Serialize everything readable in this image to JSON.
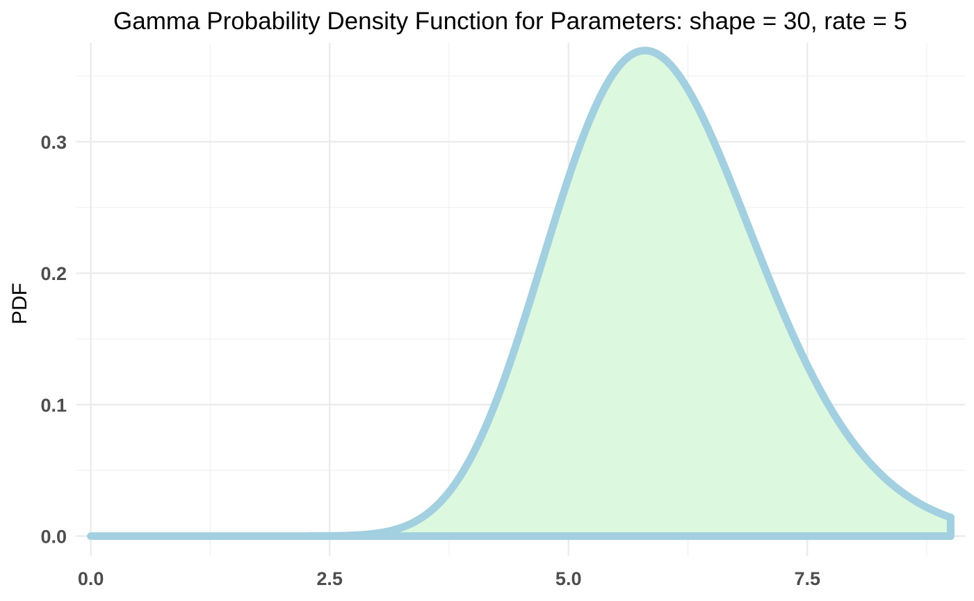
{
  "chart_data": {
    "type": "area",
    "title": "Gamma Probability Density Function for Parameters: shape = 30, rate = 5",
    "xlabel": "",
    "ylabel": "PDF",
    "xlim": [
      -0.15,
      9.15
    ],
    "ylim": [
      -0.015,
      0.375
    ],
    "x_ticks": [
      0.0,
      2.5,
      5.0,
      7.5
    ],
    "x_tick_labels": [
      "0.0",
      "2.5",
      "5.0",
      "7.5"
    ],
    "y_ticks": [
      0.0,
      0.1,
      0.2,
      0.3
    ],
    "y_tick_labels": [
      "0.0",
      "0.1",
      "0.2",
      "0.3"
    ],
    "grid": true,
    "distribution": {
      "family": "gamma",
      "shape": 30,
      "rate": 5
    },
    "x_range": [
      0,
      9
    ],
    "series": [
      {
        "x": [
          0,
          2.5,
          3.0,
          3.25,
          3.5,
          3.75,
          4.0,
          4.25,
          4.5,
          4.75,
          5.0,
          5.25,
          5.5,
          5.8,
          6.0,
          6.25,
          6.5,
          6.75,
          7.0,
          7.25,
          7.5,
          7.75,
          8.0,
          8.25,
          8.5,
          8.75,
          9.0
        ],
        "pdf": [
          0.0,
          0.001,
          0.005,
          0.011,
          0.021,
          0.041,
          0.069,
          0.106,
          0.151,
          0.2,
          0.249,
          0.297,
          0.335,
          0.367,
          0.362,
          0.344,
          0.317,
          0.283,
          0.245,
          0.207,
          0.17,
          0.136,
          0.106,
          0.08,
          0.059,
          0.042,
          0.03
        ]
      }
    ],
    "colors": {
      "line": "#a3d0e1",
      "fill": "#dcf8df",
      "grid": "#ebebeb",
      "ticks": "#4d4d4d"
    }
  }
}
